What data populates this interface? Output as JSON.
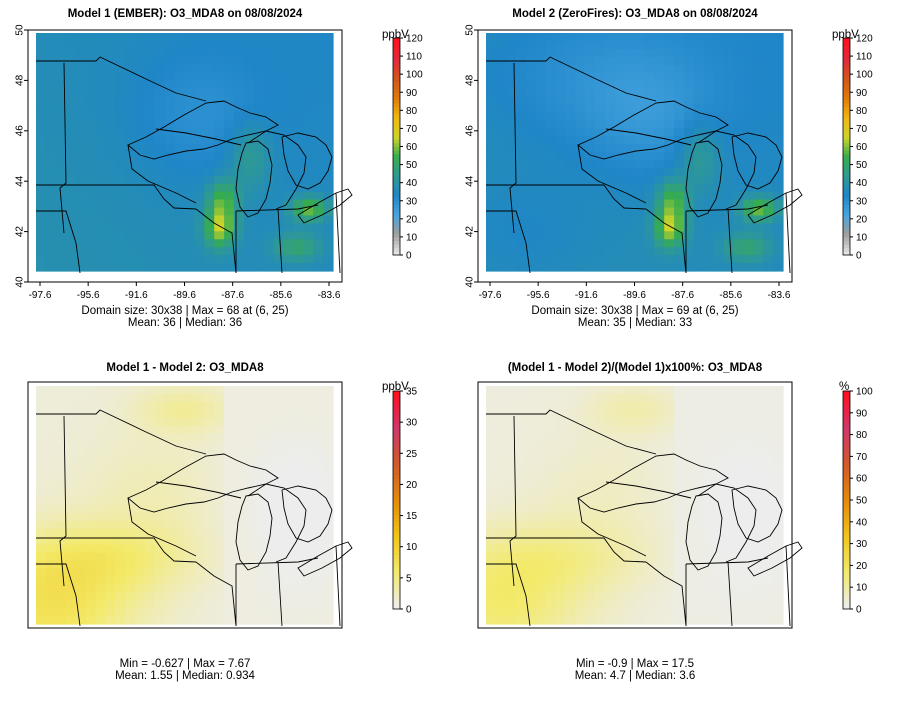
{
  "panels": [
    {
      "title": "Model 1 (EMBER): O3_MDA8 on 08/08/2024",
      "stats_line1": "Domain size: 30x38 | Max = 68 at (6, 25)",
      "stats_line2": "Mean: 36 |  Median: 36",
      "unit": "ppbV",
      "x_ticks": [
        "-97.6",
        "-95.6",
        "-91.6",
        "-89.6",
        "-87.6",
        "-85.6",
        "-83.6"
      ],
      "y_ticks": [
        "40",
        "42",
        "44",
        "46",
        "48",
        "50"
      ],
      "colorbar_ticks": [
        "0",
        "10",
        "20",
        "30",
        "40",
        "50",
        "60",
        "70",
        "80",
        "90",
        "100",
        "110",
        "120"
      ],
      "colorbar_range": [
        0,
        120
      ]
    },
    {
      "title": "Model 2 (ZeroFires): O3_MDA8 on 08/08/2024",
      "stats_line1": "Domain size: 30x38 | Max = 69 at (6, 25)",
      "stats_line2": "Mean: 35 |  Median: 33",
      "unit": "ppbV",
      "x_ticks": [
        "-97.6",
        "-95.6",
        "-91.6",
        "-89.6",
        "-87.6",
        "-85.6",
        "-83.6"
      ],
      "y_ticks": [
        "40",
        "42",
        "44",
        "46",
        "48",
        "50"
      ],
      "colorbar_ticks": [
        "0",
        "10",
        "20",
        "30",
        "40",
        "50",
        "60",
        "70",
        "80",
        "90",
        "100",
        "110",
        "120"
      ],
      "colorbar_range": [
        0,
        120
      ]
    },
    {
      "title": "Model 1 - Model 2: O3_MDA8",
      "stats_line1": "Min = -0.627 | Max = 7.67",
      "stats_line2": "Mean: 1.55 |  Median: 0.934",
      "unit": "ppbV",
      "colorbar_ticks": [
        "0",
        "5",
        "10",
        "15",
        "20",
        "25",
        "30",
        "35"
      ],
      "colorbar_range": [
        0,
        35
      ]
    },
    {
      "title": "(Model 1 - Model 2)/(Model 1)x100%: O3_MDA8",
      "stats_line1": "Min = -0.9 | Max = 17.5",
      "stats_line2": "Mean: 4.7 |  Median: 3.6",
      "unit": "%",
      "colorbar_ticks": [
        "0",
        "10",
        "20",
        "30",
        "40",
        "50",
        "60",
        "70",
        "80",
        "90",
        "100"
      ],
      "colorbar_range": [
        0,
        100
      ]
    }
  ],
  "colors": {
    "abs_scale": [
      "#e5e5e5",
      "#9e9e9e",
      "#47a5e0",
      "#1f86c8",
      "#2f9a92",
      "#36ad4d",
      "#cfd42a",
      "#f0b810",
      "#e07a08",
      "#d4561a",
      "#e02a3c",
      "#ff1020"
    ],
    "diff_scale": [
      "#ededed",
      "#f3ea6a",
      "#f1c51a",
      "#e58a0a",
      "#d35a28",
      "#d0386a",
      "#ff1020"
    ]
  }
}
